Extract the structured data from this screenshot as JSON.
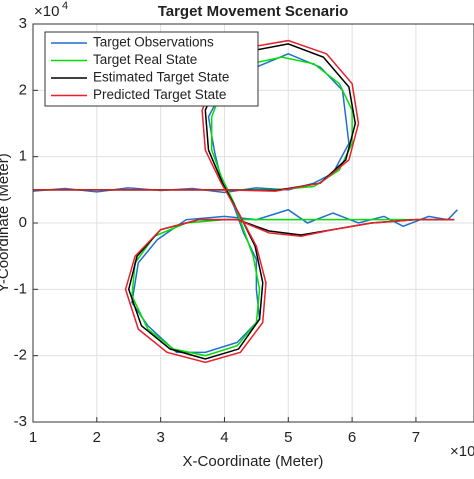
{
  "chart_data": {
    "type": "line",
    "title": "Target Movement Scenario",
    "x_label": "X-Coordinate (Meter)",
    "y_label": "Y-Coordinate (Meter)",
    "x_exponent_label": "×10",
    "y_exponent_label": "×10",
    "y_exponent_power": "4",
    "xlim": [
      1,
      7.91
    ],
    "ylim": [
      -3,
      3
    ],
    "xticks": [
      1,
      2,
      3,
      4,
      5,
      6,
      7
    ],
    "yticks": [
      -3,
      -2,
      -1,
      0,
      1,
      2,
      3
    ],
    "grid": true,
    "legend": "upper left",
    "series": [
      {
        "name": "Target Observations",
        "color": "#1f6fd0",
        "x": [
          1,
          1.5,
          2,
          2.5,
          3,
          3.5,
          4,
          4.5,
          5,
          5.4,
          5.7,
          5.95,
          5.9,
          5.85,
          5.5,
          5.0,
          4.5,
          4.05,
          3.75,
          3.85,
          3.95,
          4.15,
          4.3,
          4.5,
          4.5,
          4.55,
          4.2,
          3.7,
          3.25,
          2.8,
          2.55,
          2.65,
          2.95,
          3.4,
          4.0,
          4.5,
          5.0,
          5.3,
          5.7,
          6.1,
          6.5,
          6.8,
          7.2,
          7.5,
          7.65
        ],
        "values": [
          0.48,
          0.52,
          0.47,
          0.53,
          0.49,
          0.52,
          0.46,
          0.53,
          0.5,
          0.6,
          0.75,
          1.2,
          1.6,
          2.0,
          2.35,
          2.55,
          2.35,
          2.15,
          1.6,
          1.05,
          0.65,
          0.25,
          -0.15,
          -0.55,
          -1.0,
          -1.45,
          -1.8,
          -1.95,
          -1.95,
          -1.55,
          -1.2,
          -0.6,
          -0.25,
          0.05,
          0.1,
          0.05,
          0.2,
          0.0,
          0.15,
          0.0,
          0.1,
          -0.05,
          0.1,
          0.05,
          0.2
        ]
      },
      {
        "name": "Target Real State",
        "color": "#00e000",
        "x": [
          1,
          2,
          3,
          4,
          4.8,
          5.4,
          5.8,
          6.0,
          6.0,
          5.8,
          5.4,
          4.9,
          4.4,
          4.0,
          3.8,
          3.8,
          3.95,
          4.15,
          4.3,
          4.45,
          4.55,
          4.5,
          4.2,
          3.7,
          3.2,
          2.8,
          2.55,
          2.6,
          2.9,
          3.4,
          4.0,
          4.5,
          5.5,
          6.5,
          7.5
        ],
        "values": [
          0.5,
          0.5,
          0.5,
          0.5,
          0.5,
          0.55,
          0.8,
          1.2,
          1.7,
          2.1,
          2.4,
          2.5,
          2.4,
          2.1,
          1.6,
          1.1,
          0.7,
          0.3,
          -0.1,
          -0.5,
          -1.0,
          -1.5,
          -1.85,
          -2.0,
          -1.9,
          -1.6,
          -1.1,
          -0.6,
          -0.2,
          0.0,
          0.05,
          0.05,
          0.05,
          0.05,
          0.05
        ]
      },
      {
        "name": "Estimated Target State",
        "color": "#000000",
        "x": [
          1,
          2,
          3,
          4,
          4.8,
          5.5,
          5.9,
          6.05,
          5.95,
          5.55,
          5.0,
          4.45,
          3.95,
          3.7,
          3.75,
          3.97,
          4.25,
          4.48,
          4.6,
          4.55,
          4.22,
          3.7,
          3.15,
          2.7,
          2.5,
          2.63,
          3.0,
          3.6,
          4.2,
          4.7,
          5.2,
          5.7,
          6.3,
          7.0,
          7.6
        ],
        "values": [
          0.5,
          0.5,
          0.5,
          0.5,
          0.49,
          0.6,
          0.95,
          1.5,
          2.05,
          2.5,
          2.7,
          2.6,
          2.25,
          1.7,
          1.1,
          0.6,
          0.1,
          -0.35,
          -0.9,
          -1.45,
          -1.9,
          -2.05,
          -1.9,
          -1.55,
          -1.0,
          -0.5,
          -0.1,
          0.05,
          0.05,
          -0.12,
          -0.18,
          -0.1,
          0.0,
          0.05,
          0.05
        ]
      },
      {
        "name": "Predicted Target State",
        "color": "#e8202a",
        "x": [
          1,
          2,
          3,
          4,
          4.8,
          5.5,
          5.95,
          6.1,
          6.0,
          5.6,
          5.0,
          4.4,
          3.9,
          3.65,
          3.7,
          3.95,
          4.25,
          4.5,
          4.65,
          4.6,
          4.25,
          3.7,
          3.1,
          2.65,
          2.45,
          2.6,
          3.0,
          3.6,
          4.2,
          4.7,
          5.2,
          5.7,
          6.3,
          7.0,
          7.6
        ],
        "values": [
          0.5,
          0.5,
          0.5,
          0.5,
          0.48,
          0.6,
          0.95,
          1.5,
          2.1,
          2.55,
          2.75,
          2.65,
          2.3,
          1.7,
          1.1,
          0.6,
          0.1,
          -0.35,
          -0.9,
          -1.5,
          -1.95,
          -2.1,
          -1.95,
          -1.6,
          -1.0,
          -0.5,
          -0.1,
          0.05,
          0.05,
          -0.15,
          -0.2,
          -0.1,
          0.0,
          0.05,
          0.05
        ]
      }
    ]
  }
}
